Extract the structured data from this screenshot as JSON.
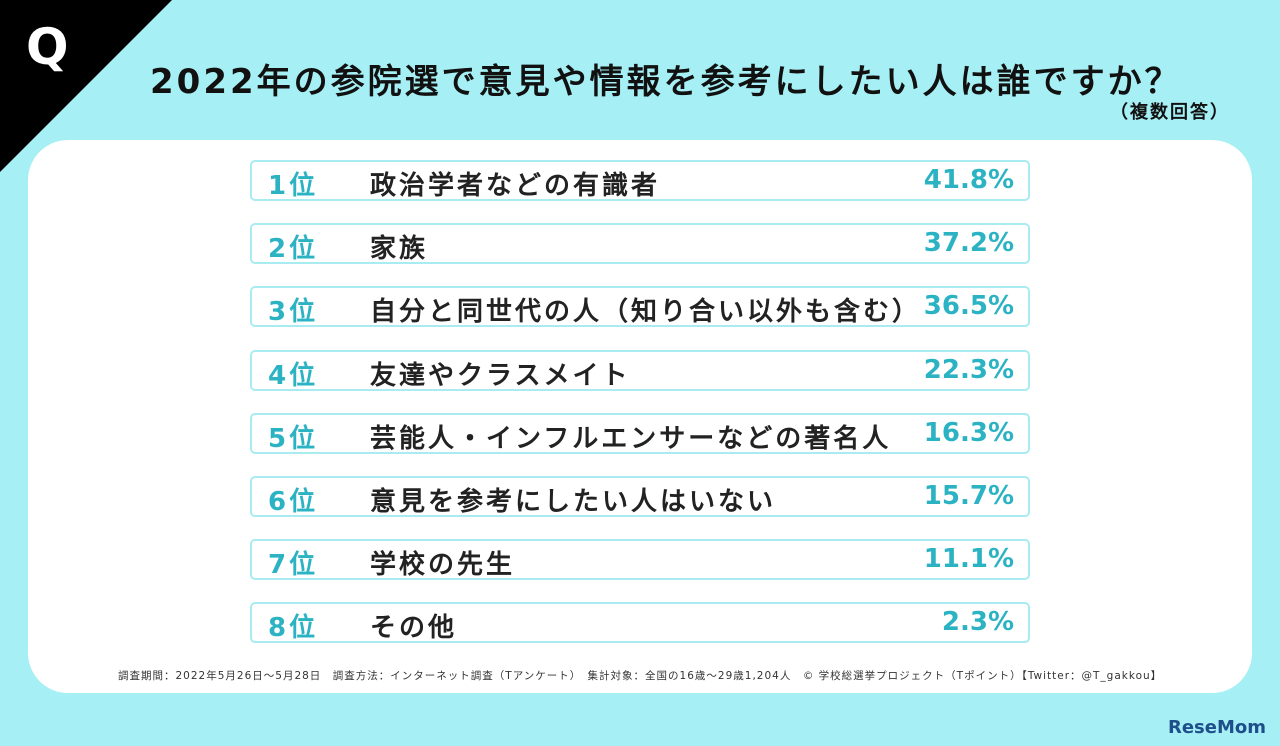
{
  "header": {
    "q_mark": "Q",
    "title": "2022年の参院選で意見や情報を参考にしたい人は誰ですか？",
    "subtitle": "（複数回答）"
  },
  "rankings": [
    {
      "rank": "1位",
      "label": "政治学者などの有識者",
      "percent": "41.8%"
    },
    {
      "rank": "2位",
      "label": "家族",
      "percent": "37.2%"
    },
    {
      "rank": "3位",
      "label": "自分と同世代の人（知り合い以外も含む）",
      "percent": "36.5%"
    },
    {
      "rank": "4位",
      "label": "友達やクラスメイト",
      "percent": "22.3%"
    },
    {
      "rank": "5位",
      "label": "芸能人・インフルエンサーなどの著名人",
      "percent": "16.3%"
    },
    {
      "rank": "6位",
      "label": "意見を参考にしたい人はいない",
      "percent": "15.7%"
    },
    {
      "rank": "7位",
      "label": "学校の先生",
      "percent": "11.1%"
    },
    {
      "rank": "8位",
      "label": "その他",
      "percent": "2.3%"
    }
  ],
  "footnote": "調査期間：2022年5月26日〜5月28日　調査方法：インターネット調査（Tアンケート）　集計対象：全国の16歳〜29歳1,204人　© 学校総選挙プロジェクト（Tポイント）【Twitter：@T_gakkou】",
  "watermark": "ReseMom",
  "colors": {
    "background": "#a6eff4",
    "accent": "#2bb3c3",
    "row_border": "#a8ecf1",
    "corner": "#000000"
  }
}
